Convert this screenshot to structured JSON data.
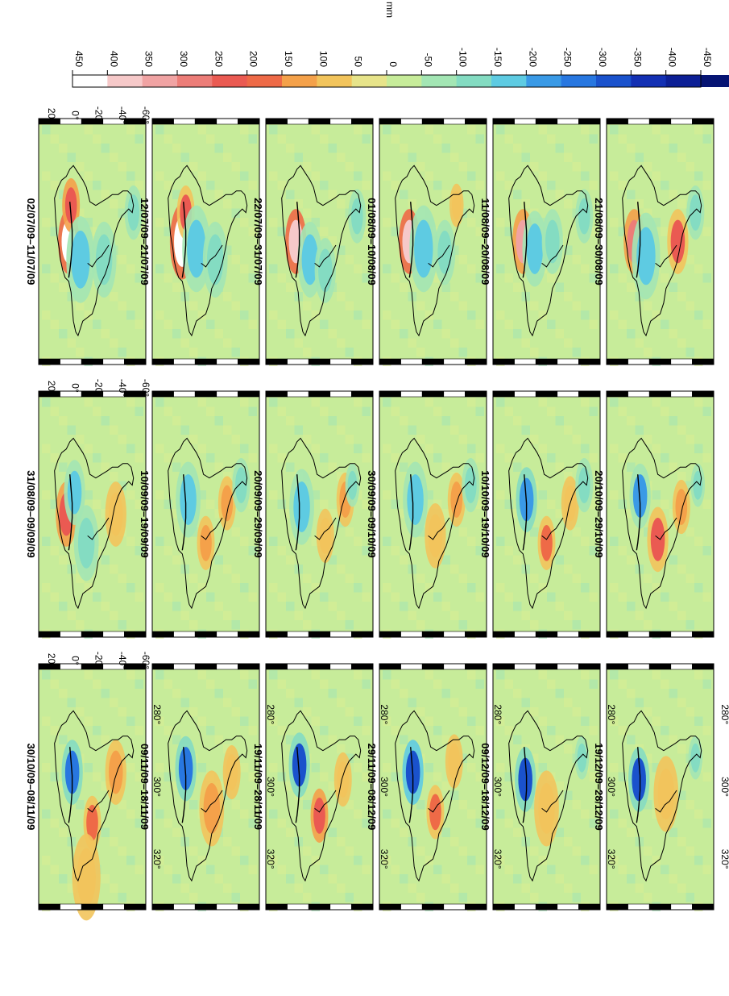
{
  "chart_data": {
    "type": "heatmap",
    "colorbar": {
      "unit_label": "mm",
      "ticks": [
        "450",
        "400",
        "350",
        "300",
        "250",
        "200",
        "150",
        "100",
        "50",
        "0",
        "-50",
        "-100",
        "-150",
        "-200",
        "-250",
        "-300",
        "-350",
        "-400",
        "-450"
      ],
      "colors": [
        "#ffffff",
        "#f6c9c9",
        "#f0a3a3",
        "#ec7d78",
        "#ea5a52",
        "#ee6a47",
        "#f4a14a",
        "#f2c45c",
        "#e7e48a",
        "#c7ec9a",
        "#a3e6b4",
        "#84dcc2",
        "#5ecbe2",
        "#3a9ae6",
        "#2877e0",
        "#1a52cc",
        "#1330b3",
        "#0c1f95",
        "#061473"
      ]
    },
    "rows": [
      {
        "lat_ticks": [
          "20°",
          "0°",
          "-20°",
          "-40°",
          "-60°"
        ],
        "lon_ticks": [],
        "panels": [
          {
            "label": "02/07/09–11/07/09",
            "anomalies": [
              {
                "lat": 0,
                "lon": 300,
                "v": 420,
                "r": 6
              },
              {
                "lat": -2,
                "lon": 290,
                "v": 230,
                "r": 5
              },
              {
                "lat": -10,
                "lon": 305,
                "v": -160,
                "r": 8
              },
              {
                "lat": -30,
                "lon": 305,
                "v": -140,
                "r": 7
              },
              {
                "lat": -55,
                "lon": 292,
                "v": -120,
                "r": 5
              }
            ]
          },
          {
            "label": "12/07/09–21/07/09",
            "anomalies": [
              {
                "lat": 0,
                "lon": 300,
                "v": 440,
                "r": 7
              },
              {
                "lat": -3,
                "lon": 292,
                "v": 220,
                "r": 5
              },
              {
                "lat": -12,
                "lon": 302,
                "v": -150,
                "r": 8
              },
              {
                "lat": -28,
                "lon": 305,
                "v": -120,
                "r": 7
              }
            ]
          },
          {
            "label": "22/07/09–31/07/09",
            "anomalies": [
              {
                "lat": 0,
                "lon": 300,
                "v": 380,
                "r": 6
              },
              {
                "lat": -12,
                "lon": 305,
                "v": -170,
                "r": 7
              },
              {
                "lat": -25,
                "lon": 308,
                "v": -120,
                "r": 6
              },
              {
                "lat": -52,
                "lon": 293,
                "v": -100,
                "r": 5
              }
            ]
          },
          {
            "label": "01/08/09–10/08/09",
            "anomalies": [
              {
                "lat": 0,
                "lon": 300,
                "v": 390,
                "r": 6
              },
              {
                "lat": -12,
                "lon": 302,
                "v": -170,
                "r": 8
              },
              {
                "lat": -30,
                "lon": 303,
                "v": -110,
                "r": 6
              },
              {
                "lat": -40,
                "lon": 290,
                "v": 80,
                "r": 4
              }
            ]
          },
          {
            "label": "11/08/09–20/08/09",
            "anomalies": [
              {
                "lat": 0,
                "lon": 300,
                "v": 320,
                "r": 6
              },
              {
                "lat": -10,
                "lon": 302,
                "v": -190,
                "r": 7
              },
              {
                "lat": -25,
                "lon": 300,
                "v": -100,
                "r": 6
              },
              {
                "lat": -52,
                "lon": 293,
                "v": -110,
                "r": 5
              }
            ]
          },
          {
            "label": "21/08/09–30/08/09",
            "anomalies": [
              {
                "lat": 2,
                "lon": 300,
                "v": 260,
                "r": 6
              },
              {
                "lat": -8,
                "lon": 304,
                "v": -160,
                "r": 8
              },
              {
                "lat": -35,
                "lon": 300,
                "v": 220,
                "r": 6
              },
              {
                "lat": -50,
                "lon": 292,
                "v": -110,
                "r": 5
              }
            ]
          }
        ]
      },
      {
        "lat_ticks": [
          "20°",
          "0°",
          "-20°",
          "-40°",
          "-60°"
        ],
        "lon_ticks": [],
        "panels": [
          {
            "label": "31/08/09–09/09/09",
            "anomalies": [
              {
                "lat": 2,
                "lon": 300,
                "v": 230,
                "r": 6
              },
              {
                "lat": -5,
                "lon": 294,
                "v": -170,
                "r": 6
              },
              {
                "lat": -15,
                "lon": 308,
                "v": -110,
                "r": 7
              },
              {
                "lat": -40,
                "lon": 300,
                "v": 70,
                "r": 6
              }
            ]
          },
          {
            "label": "10/09/09–19/09/09",
            "anomalies": [
              {
                "lat": -5,
                "lon": 296,
                "v": -160,
                "r": 7
              },
              {
                "lat": -20,
                "lon": 308,
                "v": 110,
                "r": 5
              },
              {
                "lat": -38,
                "lon": 297,
                "v": 130,
                "r": 5
              },
              {
                "lat": -50,
                "lon": 292,
                "v": -110,
                "r": 5
              }
            ]
          },
          {
            "label": "20/09/09–29/09/09",
            "anomalies": [
              {
                "lat": -5,
                "lon": 298,
                "v": -170,
                "r": 7
              },
              {
                "lat": -25,
                "lon": 306,
                "v": 90,
                "r": 5
              },
              {
                "lat": -42,
                "lon": 296,
                "v": 120,
                "r": 5
              },
              {
                "lat": -48,
                "lon": 292,
                "v": -110,
                "r": 4
              }
            ]
          },
          {
            "label": "30/09/09–09/10/09",
            "anomalies": [
              {
                "lat": -5,
                "lon": 296,
                "v": -170,
                "r": 7
              },
              {
                "lat": -22,
                "lon": 306,
                "v": 100,
                "r": 6
              },
              {
                "lat": -40,
                "lon": 296,
                "v": 110,
                "r": 5
              },
              {
                "lat": -52,
                "lon": 292,
                "v": -120,
                "r": 5
              }
            ]
          },
          {
            "label": "10/10/09–19/10/09",
            "anomalies": [
              {
                "lat": -3,
                "lon": 296,
                "v": -230,
                "r": 6
              },
              {
                "lat": -20,
                "lon": 308,
                "v": 200,
                "r": 5
              },
              {
                "lat": -40,
                "lon": 297,
                "v": 90,
                "r": 5
              },
              {
                "lat": -52,
                "lon": 292,
                "v": -140,
                "r": 5
              }
            ]
          },
          {
            "label": "20/10/09–29/10/09",
            "anomalies": [
              {
                "lat": -3,
                "lon": 295,
                "v": -220,
                "r": 6
              },
              {
                "lat": -18,
                "lon": 307,
                "v": 210,
                "r": 6
              },
              {
                "lat": -38,
                "lon": 298,
                "v": 110,
                "r": 5
              },
              {
                "lat": -52,
                "lon": 292,
                "v": -110,
                "r": 4
              }
            ]
          }
        ]
      },
      {
        "lat_ticks": [
          "20°",
          "0°",
          "-20°",
          "-40°",
          "-60°"
        ],
        "lon_ticks": [
          "280°",
          "300°",
          "320°"
        ],
        "panels": [
          {
            "label": "30/10/09–08/11/09",
            "anomalies": [
              {
                "lat": -3,
                "lon": 296,
                "v": -260,
                "r": 6
              },
              {
                "lat": -20,
                "lon": 310,
                "v": 180,
                "r": 5
              },
              {
                "lat": -40,
                "lon": 296,
                "v": 110,
                "r": 6
              },
              {
                "lat": -15,
                "lon": 325,
                "v": 60,
                "r": 8
              }
            ]
          },
          {
            "label": "09/11/09–18/11/09",
            "anomalies": [
              {
                "lat": -3,
                "lon": 295,
                "v": -270,
                "r": 6
              },
              {
                "lat": -25,
                "lon": 306,
                "v": 110,
                "r": 7
              },
              {
                "lat": -42,
                "lon": 296,
                "v": 80,
                "r": 5
              }
            ]
          },
          {
            "label": "19/11/09–28/11/09",
            "anomalies": [
              {
                "lat": -3,
                "lon": 294,
                "v": -300,
                "r": 6
              },
              {
                "lat": -20,
                "lon": 308,
                "v": 230,
                "r": 5
              },
              {
                "lat": -40,
                "lon": 298,
                "v": 80,
                "r": 5
              }
            ]
          },
          {
            "label": "29/11/09–08/12/09",
            "anomalies": [
              {
                "lat": -3,
                "lon": 296,
                "v": -340,
                "r": 6
              },
              {
                "lat": -22,
                "lon": 307,
                "v": 180,
                "r": 5
              },
              {
                "lat": -38,
                "lon": 293,
                "v": 100,
                "r": 5
              }
            ]
          },
          {
            "label": "09/12/09–18/12/09",
            "anomalies": [
              {
                "lat": -2,
                "lon": 298,
                "v": -330,
                "r": 6
              },
              {
                "lat": -20,
                "lon": 306,
                "v": 80,
                "r": 7
              },
              {
                "lat": -50,
                "lon": 292,
                "v": -110,
                "r": 4
              }
            ]
          },
          {
            "label": "19/12/09–28/12/09",
            "anomalies": [
              {
                "lat": -2,
                "lon": 298,
                "v": -300,
                "r": 6
              },
              {
                "lat": -25,
                "lon": 302,
                "v": 70,
                "r": 7
              },
              {
                "lat": -50,
                "lon": 292,
                "v": -100,
                "r": 4
              }
            ]
          }
        ]
      }
    ]
  }
}
